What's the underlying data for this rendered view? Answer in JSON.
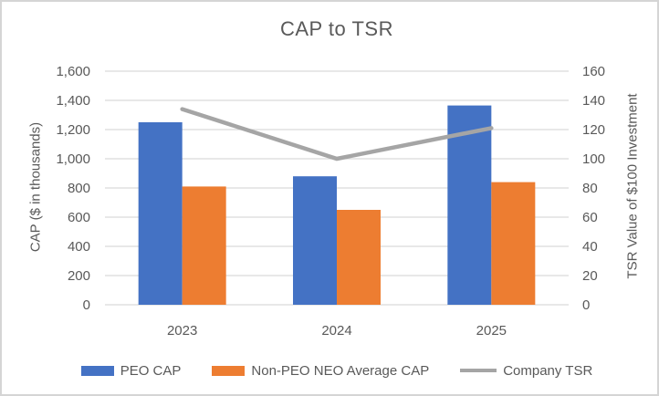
{
  "chart_data": {
    "type": "combo",
    "title": "CAP to TSR",
    "categories": [
      "2023",
      "2024",
      "2025"
    ],
    "series": [
      {
        "name": "PEO CAP",
        "type": "bar",
        "axis": "left",
        "color": "#4472C4",
        "values": [
          1250,
          880,
          1365
        ]
      },
      {
        "name": "Non-PEO NEO Average CAP",
        "type": "bar",
        "axis": "left",
        "color": "#ED7D31",
        "values": [
          810,
          650,
          840
        ]
      },
      {
        "name": "Company TSR",
        "type": "line",
        "axis": "right",
        "color": "#A5A5A5",
        "values": [
          134,
          100,
          121
        ]
      }
    ],
    "left_axis": {
      "label": "CAP ($ in thousands)",
      "min": 0,
      "max": 1600,
      "step": 200,
      "tick_labels": [
        "0",
        "200",
        "400",
        "600",
        "800",
        "1,000",
        "1,200",
        "1,400",
        "1,600"
      ]
    },
    "right_axis": {
      "label": "TSR Value of $100 Investment",
      "min": 0,
      "max": 160,
      "step": 20,
      "tick_labels": [
        "0",
        "20",
        "40",
        "60",
        "80",
        "100",
        "120",
        "140",
        "160"
      ]
    },
    "grid": true,
    "legend_position": "bottom",
    "colors": {
      "text": "#595959",
      "grid": "#D9D9D9",
      "background": "#FFFFFF",
      "border": "#D5D5D5"
    }
  }
}
